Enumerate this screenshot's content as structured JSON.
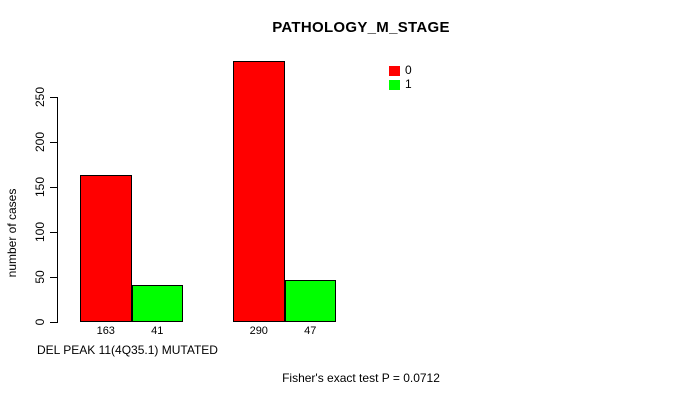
{
  "chart_data": {
    "type": "bar",
    "title": "PATHOLOGY_M_STAGE",
    "ylabel": "number of cases",
    "xlabel": "DEL PEAK 11(4Q35.1) MUTATED",
    "footnote": "Fisher's exact test P = 0.0712",
    "yticks": [
      0,
      50,
      100,
      150,
      200,
      250
    ],
    "ylim": [
      0,
      292
    ],
    "grid": false,
    "legend_position": "top-right",
    "bar_labels_show_values": true,
    "series": [
      {
        "name": "0",
        "color": "#ff0000",
        "values": [
          163,
          290
        ]
      },
      {
        "name": "1",
        "color": "#00ff00",
        "values": [
          41,
          47
        ]
      }
    ]
  }
}
